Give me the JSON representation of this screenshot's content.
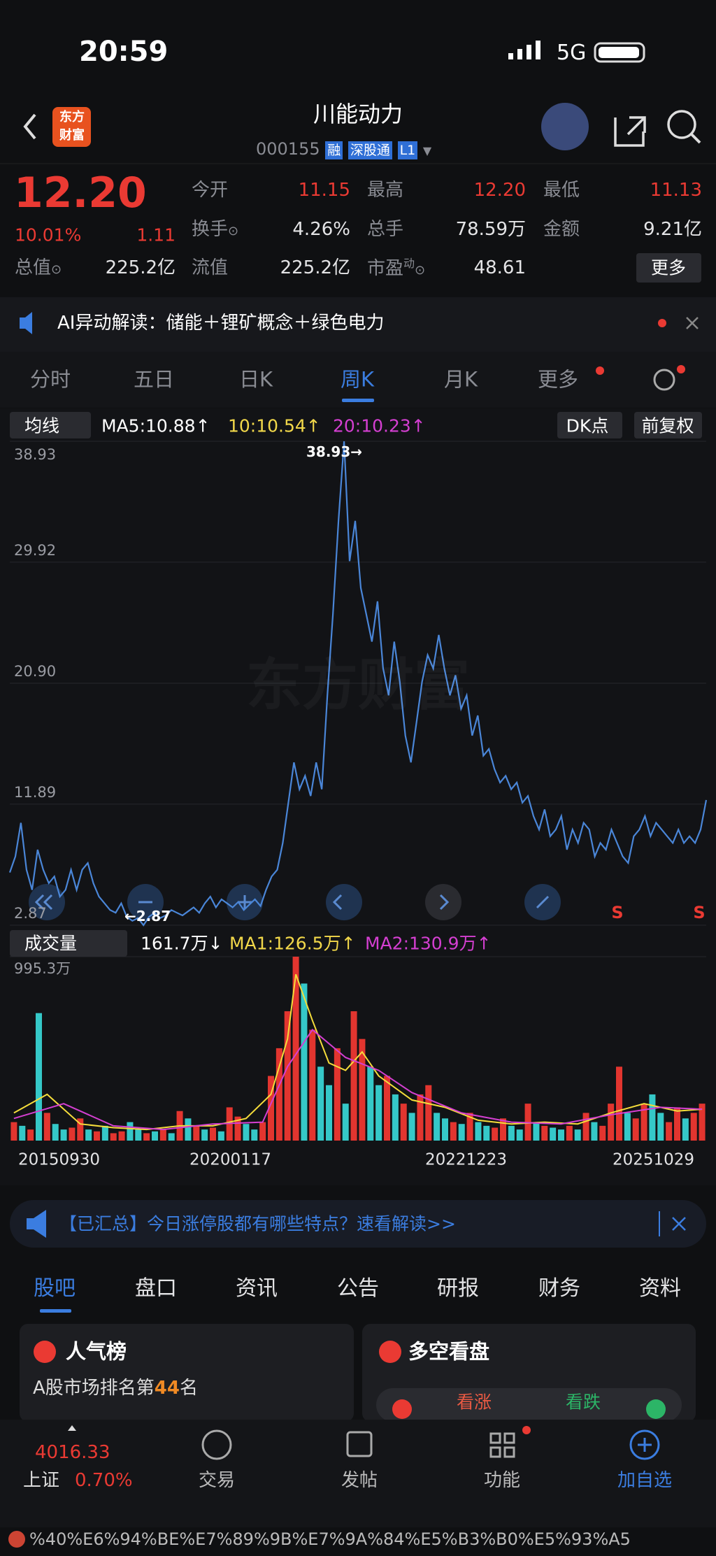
{
  "status_bar": {
    "time": "20:59",
    "network": "5G"
  },
  "header": {
    "logo": [
      "东方",
      "财富"
    ],
    "title": "川能动力",
    "code": "000155",
    "tags": [
      "融",
      "深股通",
      "L1"
    ]
  },
  "quote": {
    "price": "12.20",
    "change_pct": "10.01%",
    "change": "1.11",
    "open_label": "今开",
    "open": "11.15",
    "high_label": "最高",
    "high": "12.20",
    "low_label": "最低",
    "low": "11.13",
    "turnover_label": "换手",
    "turnover": "4.26%",
    "volume_label": "总手",
    "volume": "78.59万",
    "amount_label": "金额",
    "amount": "9.21亿",
    "mcap_label": "总值",
    "mcap": "225.2亿",
    "float_label": "流值",
    "float": "225.2亿",
    "pe_label": "市盈",
    "pe_tag": "动",
    "pe": "48.61",
    "more": "更多"
  },
  "ai_bar": {
    "text": "AI异动解读：储能＋锂矿概念＋绿色电力"
  },
  "period_tabs": [
    "分时",
    "五日",
    "日K",
    "周K",
    "月K",
    "更多"
  ],
  "indicator_bar": {
    "selector": "均线",
    "ma5": "MA5:10.88↑",
    "ma10": "10:10.54↑",
    "ma20": "20:10.23↑",
    "dk": "DK点",
    "adjust": "前复权"
  },
  "price_chart": {
    "type": "line",
    "watermark": "东方财富",
    "color": "#4a86d8",
    "values": [
      6.8,
      8,
      10.5,
      7,
      5.5,
      8.5,
      7,
      6,
      6.5,
      5,
      5.5,
      7,
      5.5,
      7,
      7.5,
      6,
      5,
      4.5,
      4,
      3.8,
      4.5,
      3.5,
      3.2,
      3.4,
      2.87,
      3.5,
      3.8,
      3.4,
      3.6,
      4,
      3.8,
      3.6,
      3.9,
      4.2,
      3.8,
      4.5,
      5,
      4.2,
      4.8,
      4.5,
      4.2,
      4.6,
      4.0,
      4.4,
      4.8,
      4.3,
      5.5,
      6.5,
      7,
      9,
      12,
      15,
      13,
      14,
      12.5,
      15,
      13,
      20,
      26,
      33,
      38.93,
      30,
      33,
      28,
      26,
      24,
      27,
      22,
      20,
      24,
      21,
      17,
      15,
      18,
      21,
      23,
      22,
      24.5,
      22,
      20,
      21.5,
      19,
      20,
      17,
      18.5,
      15.5,
      16,
      14.5,
      13.5,
      14,
      13,
      13.5,
      12,
      12.5,
      11,
      10,
      11.5,
      9.5,
      10,
      11,
      8.5,
      10,
      9,
      10.5,
      10,
      8,
      9,
      8.5,
      10,
      9,
      8,
      7.5,
      9.5,
      10,
      11,
      9.5,
      10.5,
      10,
      9.5,
      9,
      10,
      9,
      9.5,
      9,
      10,
      12.2
    ],
    "ylim": [
      2.87,
      38.93
    ],
    "yticks": [
      2.87,
      11.89,
      {
        "value": 20.9,
        "label": "20.90"
      },
      29.92,
      38.93
    ],
    "grid": true,
    "high_label": "38.93→",
    "low_label": "←2.87",
    "signals": [
      "S",
      "S"
    ]
  },
  "volume_bar": {
    "selector": "成交量",
    "vol": "161.7万↓",
    "ma1": "MA1:126.5万↑",
    "ma2": "MA2:130.9万↑"
  },
  "volume_chart": {
    "type": "bar",
    "up_color": "#e2352f",
    "down_color": "#35c8c8",
    "values": [
      100,
      80,
      60,
      690,
      150,
      90,
      60,
      70,
      120,
      60,
      50,
      80,
      40,
      50,
      100,
      60,
      40,
      50,
      60,
      40,
      160,
      120,
      80,
      60,
      70,
      50,
      180,
      130,
      90,
      60,
      100,
      350,
      500,
      700,
      995.3,
      850,
      600,
      400,
      300,
      500,
      200,
      700,
      550,
      400,
      300,
      350,
      250,
      200,
      150,
      250,
      300,
      150,
      120,
      100,
      90,
      150,
      100,
      80,
      70,
      120,
      80,
      60,
      200,
      100,
      80,
      70,
      60,
      80,
      60,
      150,
      100,
      80,
      200,
      400,
      150,
      120,
      200,
      250,
      150,
      100,
      180,
      120,
      150,
      200
    ],
    "rising": [
      true,
      false,
      true,
      false,
      true,
      false,
      false,
      true,
      true,
      false,
      true,
      false,
      true,
      true,
      false,
      false,
      true,
      false,
      true,
      false,
      true,
      false,
      true,
      false,
      true,
      false,
      true,
      true,
      false,
      false,
      true,
      true,
      true,
      true,
      true,
      false,
      true,
      false,
      false,
      true,
      false,
      true,
      true,
      false,
      false,
      true,
      false,
      true,
      false,
      true,
      true,
      false,
      false,
      true,
      false,
      true,
      false,
      false,
      true,
      true,
      false,
      false,
      true,
      false,
      true,
      false,
      false,
      true,
      false,
      true,
      false,
      true,
      true,
      true,
      false,
      true,
      true,
      false,
      false,
      true,
      true,
      false,
      true,
      true
    ],
    "ylim": [
      0,
      995.3
    ],
    "yticks": [
      {
        "value": 995.3,
        "label": "995.3万"
      }
    ],
    "series": [
      {
        "color": "#f5dd3b",
        "x": [
          0,
          4,
          8,
          12,
          16,
          20,
          24,
          28,
          31,
          33,
          34,
          36,
          38,
          40,
          42,
          44,
          48,
          52,
          56,
          60,
          64,
          68,
          72,
          76,
          80,
          83
        ],
        "values": [
          150,
          250,
          90,
          70,
          60,
          80,
          80,
          120,
          250,
          550,
          900,
          650,
          420,
          380,
          480,
          350,
          220,
          180,
          110,
          90,
          100,
          90,
          150,
          200,
          160,
          170
        ]
      },
      {
        "color": "#d43fd1",
        "x": [
          0,
          6,
          12,
          18,
          24,
          30,
          33,
          36,
          40,
          44,
          48,
          54,
          60,
          66,
          72,
          78,
          83
        ],
        "values": [
          120,
          200,
          80,
          60,
          90,
          100,
          400,
          600,
          450,
          380,
          260,
          150,
          100,
          90,
          140,
          180,
          170
        ]
      }
    ],
    "dates": [
      "20150930",
      "20200117",
      "20221223",
      "20251029"
    ]
  },
  "banner": {
    "text": "【已汇总】今日涨停股都有哪些特点？速看解读>>"
  },
  "content_tabs": [
    "股吧",
    "盘口",
    "资讯",
    "公告",
    "研报",
    "财务",
    "资料"
  ],
  "cards": {
    "popularity": {
      "title": "人气榜",
      "rank_prefix": "A股市场排名第",
      "rank": "44",
      "rank_suffix": "名"
    },
    "sentiment": {
      "title": "多空看盘",
      "bull": "看涨",
      "bear": "看跌"
    }
  },
  "bottom_bar": {
    "index_value": "4016.33",
    "index_name": "上证",
    "index_change": "0.70%",
    "items": [
      "交易",
      "发帖",
      "功能",
      "加自选"
    ]
  },
  "footer": {
    "text": "%40%E6%94%BE%E7%89%9B%E7%9A%84%E5%B3%B0%E5%93%A5"
  }
}
